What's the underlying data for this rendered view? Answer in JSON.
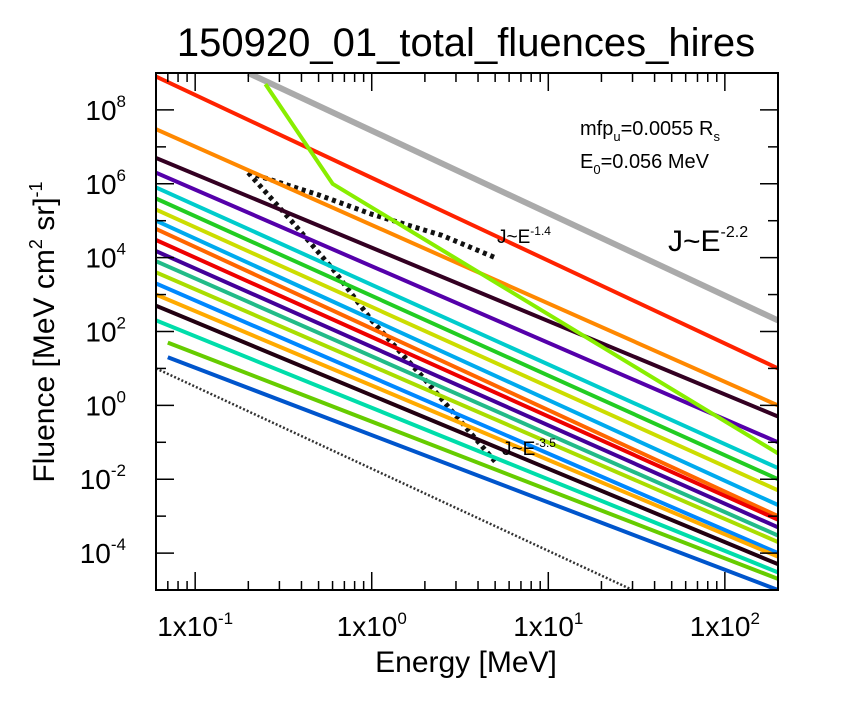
{
  "chart_data": {
    "type": "line",
    "title": "150920_01_total_fluences_hires",
    "xlabel": "Energy [MeV]",
    "ylabel_parts": [
      "Fluence [MeV cm",
      "2",
      " sr]",
      "-1"
    ],
    "xscale": "log",
    "yscale": "log",
    "xlim": [
      0.06,
      200
    ],
    "ylim": [
      1e-05,
      1000000000
    ],
    "x_ticks": [
      {
        "value": 0.1,
        "label": "1x10",
        "exp": "-1"
      },
      {
        "value": 1,
        "label": "1x10",
        "exp": "0"
      },
      {
        "value": 10,
        "label": "1x10",
        "exp": "1"
      },
      {
        "value": 100,
        "label": "1x10",
        "exp": "2"
      }
    ],
    "y_ticks": [
      {
        "value": 0.0001,
        "label": "10",
        "exp": "-4"
      },
      {
        "value": 0.01,
        "label": "10",
        "exp": "-2"
      },
      {
        "value": 1,
        "label": "10",
        "exp": "0"
      },
      {
        "value": 100,
        "label": "10",
        "exp": "2"
      },
      {
        "value": 10000,
        "label": "10",
        "exp": "4"
      },
      {
        "value": 1000000,
        "label": "10",
        "exp": "6"
      },
      {
        "value": 100000000,
        "label": "10",
        "exp": "8"
      }
    ],
    "grid": false,
    "annotations": {
      "mfp": {
        "base": "mfp",
        "sub": "u",
        "rest": "=0.0055 R",
        "sub2": "s"
      },
      "e0": {
        "base": "E",
        "sub": "0",
        "rest": "=0.056 MeV"
      },
      "slope_main": {
        "base": "J~E",
        "exp": "-2.2"
      },
      "slope_low": {
        "base": "J~E",
        "exp": "-1.4"
      },
      "slope_high": {
        "base": "J~E",
        "exp": "-3.5"
      }
    },
    "reference_lines": [
      {
        "style": "gray-solid",
        "color": "#aaaaaa",
        "points": [
          [
            0.2,
            1000000000
          ],
          [
            200,
            200
          ]
        ]
      },
      {
        "style": "dotted",
        "color": "#333333",
        "points": [
          [
            0.06,
            10
          ],
          [
            30,
            1e-05
          ]
        ]
      },
      {
        "style": "black-dotted-low",
        "color": "#111111",
        "points": [
          [
            0.2,
            2000000
          ],
          [
            0.5,
            500000
          ],
          [
            1,
            150000
          ],
          [
            2.5,
            40000
          ],
          [
            5,
            10000
          ]
        ]
      },
      {
        "style": "black-dotted-high",
        "color": "#111111",
        "points": [
          [
            0.2,
            2000000
          ],
          [
            0.35,
            100000
          ],
          [
            0.6,
            5000
          ],
          [
            1,
            200
          ],
          [
            2,
            5
          ],
          [
            5,
            0.03
          ]
        ]
      }
    ],
    "series": [
      {
        "color": "#ff2200",
        "values": [
          [
            0.06,
            800000000
          ],
          [
            200,
            10
          ]
        ]
      },
      {
        "color": "#ff8800",
        "values": [
          [
            0.06,
            30000000
          ],
          [
            200,
            1
          ]
        ]
      },
      {
        "color": "#330022",
        "values": [
          [
            0.06,
            5000000
          ],
          [
            200,
            0.5
          ]
        ]
      },
      {
        "color": "#5500aa",
        "values": [
          [
            0.06,
            2000000
          ],
          [
            200,
            0.1
          ]
        ]
      },
      {
        "color": "#88ee00",
        "values": [
          [
            0.25,
            500000000
          ],
          [
            0.6,
            1000000
          ],
          [
            200,
            0.05
          ]
        ]
      },
      {
        "color": "#00cccc",
        "values": [
          [
            0.06,
            800000
          ],
          [
            200,
            0.02
          ]
        ]
      },
      {
        "color": "#22cc22",
        "values": [
          [
            0.06,
            400000
          ],
          [
            200,
            0.01
          ]
        ]
      },
      {
        "color": "#ccdd00",
        "values": [
          [
            0.06,
            200000
          ],
          [
            200,
            0.005
          ]
        ]
      },
      {
        "color": "#00aaee",
        "values": [
          [
            0.06,
            100000
          ],
          [
            200,
            0.002
          ]
        ]
      },
      {
        "color": "#ff6600",
        "values": [
          [
            0.06,
            60000
          ],
          [
            200,
            0.001
          ]
        ]
      },
      {
        "color": "#ee0000",
        "values": [
          [
            0.06,
            30000
          ],
          [
            200,
            0.0008
          ]
        ]
      },
      {
        "color": "#440099",
        "values": [
          [
            0.06,
            15000
          ],
          [
            200,
            0.0005
          ]
        ]
      },
      {
        "color": "#22bb88",
        "values": [
          [
            0.06,
            8000
          ],
          [
            200,
            0.0003
          ]
        ]
      },
      {
        "color": "#aadd00",
        "values": [
          [
            0.06,
            4000
          ],
          [
            200,
            0.0002
          ]
        ]
      },
      {
        "color": "#0088ff",
        "values": [
          [
            0.06,
            2000
          ],
          [
            200,
            0.0001
          ]
        ]
      },
      {
        "color": "#ffaa00",
        "values": [
          [
            0.06,
            1000
          ],
          [
            200,
            8e-05
          ]
        ]
      },
      {
        "color": "#220011",
        "values": [
          [
            0.06,
            500
          ],
          [
            200,
            5e-05
          ]
        ]
      },
      {
        "color": "#00ddaa",
        "values": [
          [
            0.06,
            200
          ],
          [
            200,
            3e-05
          ]
        ]
      },
      {
        "color": "#66cc00",
        "values": [
          [
            0.07,
            50
          ],
          [
            200,
            2e-05
          ]
        ]
      },
      {
        "color": "#0055cc",
        "values": [
          [
            0.07,
            20
          ],
          [
            200,
            1e-05
          ]
        ]
      }
    ]
  }
}
